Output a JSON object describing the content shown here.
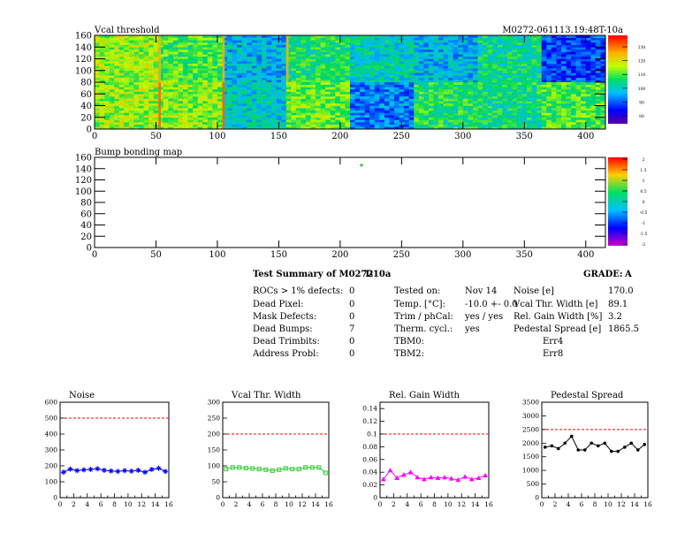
{
  "header": {
    "module_id": "M0272-061113.19:48T-10a"
  },
  "colors": {
    "frame": "#000000",
    "threshold_line": "#ff0000",
    "noise_series": "#0000ff",
    "vcal_series": "#33cc33",
    "gain_series": "#ff00ff",
    "pedestal_series": "#000000",
    "bump_pixel": "#33cc33"
  },
  "summary": {
    "title": "Test Summary of M0272",
    "temp_tag": "T-10a",
    "grade_label": "GRADE:",
    "grade_value": "A",
    "left_rows": [
      {
        "label": "ROCs > 1% defects:",
        "value": "0"
      },
      {
        "label": "Dead Pixel:",
        "value": "0"
      },
      {
        "label": "Mask Defects:",
        "value": "0"
      },
      {
        "label": "Dead Bumps:",
        "value": "7"
      },
      {
        "label": "Dead Trimbits:",
        "value": "0"
      },
      {
        "label": "Address Probl:",
        "value": "0"
      }
    ],
    "mid_rows": [
      {
        "label": "Tested on:",
        "value": "Nov 14"
      },
      {
        "label": "Temp. [°C]:",
        "value": "-10.0 +- 0.0"
      },
      {
        "label": "Trim / phCal:",
        "value": "yes / yes"
      },
      {
        "label": "Therm. cycl.:",
        "value": "yes"
      },
      {
        "label": "TBM0:",
        "value": "Err4"
      },
      {
        "label": "TBM2:",
        "value": "Err8"
      }
    ],
    "right_rows": [
      {
        "label": "Noise [e]",
        "value": "170.0"
      },
      {
        "label": "Vcal Thr. Width [e]",
        "value": "89.1"
      },
      {
        "label": "Rel. Gain Width [%]",
        "value": "3.2"
      },
      {
        "label": "Pedestal Spread [e]",
        "value": "1865.5"
      }
    ]
  },
  "chart_data": [
    {
      "type": "heatmap",
      "title": "Vcal threshold",
      "xlim": [
        0,
        416
      ],
      "ylim": [
        0,
        160
      ],
      "xticks": [
        0,
        50,
        100,
        150,
        200,
        250,
        300,
        350,
        400
      ],
      "yticks": [
        0,
        20,
        40,
        60,
        80,
        100,
        120,
        140,
        160
      ],
      "roc_grid": {
        "columns": 8,
        "rows": 2,
        "roc_width": 52,
        "roc_height": 80
      },
      "roc_mean_levels": [
        [
          0.62,
          0.55,
          0.35,
          0.5,
          0.42,
          0.35,
          0.46,
          0.22
        ],
        [
          0.62,
          0.6,
          0.4,
          0.58,
          0.28,
          0.5,
          0.48,
          0.55
        ]
      ],
      "palette_ticks": [
        "130",
        "120",
        "110",
        "100",
        "90",
        "80"
      ]
    },
    {
      "type": "heatmap",
      "title": "Bump bonding map",
      "xlim": [
        0,
        416
      ],
      "ylim": [
        0,
        160
      ],
      "xticks": [
        0,
        50,
        100,
        150,
        200,
        250,
        300,
        350,
        400
      ],
      "yticks": [
        0,
        20,
        40,
        60,
        80,
        100,
        120,
        140,
        160
      ],
      "points": [
        {
          "x": 217,
          "y": 146
        }
      ],
      "palette_ticks": [
        "2",
        "1.5",
        "1",
        "0.5",
        "0",
        "-0.5",
        "-1",
        "-1.5",
        "-2"
      ]
    },
    {
      "type": "line",
      "title": "Noise",
      "xlim": [
        0,
        16
      ],
      "ylim": [
        0,
        600
      ],
      "xticks": [
        0,
        2,
        4,
        6,
        8,
        10,
        12,
        14,
        16
      ],
      "yticks": [
        0,
        100,
        200,
        300,
        400,
        500,
        600
      ],
      "threshold": 500,
      "x": [
        0.5,
        1.5,
        2.5,
        3.5,
        4.5,
        5.5,
        6.5,
        7.5,
        8.5,
        9.5,
        10.5,
        11.5,
        12.5,
        13.5,
        14.5,
        15.5
      ],
      "y": [
        160,
        180,
        170,
        175,
        178,
        182,
        172,
        168,
        165,
        170,
        167,
        172,
        160,
        178,
        185,
        165
      ],
      "marker": "star"
    },
    {
      "type": "line",
      "title": "Vcal Thr. Width",
      "xlim": [
        0,
        16
      ],
      "ylim": [
        0,
        300
      ],
      "xticks": [
        0,
        2,
        4,
        6,
        8,
        10,
        12,
        14,
        16
      ],
      "yticks": [
        0,
        50,
        100,
        150,
        200,
        250,
        300
      ],
      "threshold": 200,
      "x": [
        0.5,
        1.5,
        2.5,
        3.5,
        4.5,
        5.5,
        6.5,
        7.5,
        8.5,
        9.5,
        10.5,
        11.5,
        12.5,
        13.5,
        14.5,
        15.5
      ],
      "y": [
        90,
        95,
        95,
        93,
        92,
        90,
        88,
        85,
        88,
        92,
        90,
        90,
        95,
        95,
        95,
        78
      ],
      "marker": "square"
    },
    {
      "type": "line",
      "title": "Rel. Gain Width",
      "xlim": [
        0,
        16
      ],
      "ylim": [
        0,
        0.15
      ],
      "xticks": [
        0,
        2,
        4,
        6,
        8,
        10,
        12,
        14,
        16
      ],
      "yticks": [
        0,
        0.02,
        0.04,
        0.06,
        0.08,
        0.1,
        0.12,
        0.14
      ],
      "threshold": 0.1,
      "x": [
        0.5,
        1.5,
        2.5,
        3.5,
        4.5,
        5.5,
        6.5,
        7.5,
        8.5,
        9.5,
        10.5,
        11.5,
        12.5,
        13.5,
        14.5,
        15.5
      ],
      "y": [
        0.029,
        0.043,
        0.031,
        0.036,
        0.04,
        0.032,
        0.029,
        0.032,
        0.031,
        0.032,
        0.03,
        0.028,
        0.033,
        0.029,
        0.031,
        0.035
      ],
      "marker": "triangle"
    },
    {
      "type": "line",
      "title": "Pedestal Spread",
      "xlim": [
        0,
        16
      ],
      "ylim": [
        0,
        3500
      ],
      "xticks": [
        0,
        2,
        4,
        6,
        8,
        10,
        12,
        14,
        16
      ],
      "yticks": [
        0,
        500,
        1000,
        1500,
        2000,
        2500,
        3000,
        3500
      ],
      "threshold": 2500,
      "x": [
        0.5,
        1.5,
        2.5,
        3.5,
        4.5,
        5.5,
        6.5,
        7.5,
        8.5,
        9.5,
        10.5,
        11.5,
        12.5,
        13.5,
        14.5,
        15.5
      ],
      "y": [
        1850,
        1900,
        1800,
        2000,
        2250,
        1750,
        1750,
        2000,
        1900,
        2000,
        1700,
        1700,
        1850,
        2000,
        1750,
        1950
      ],
      "marker": "dot"
    }
  ]
}
